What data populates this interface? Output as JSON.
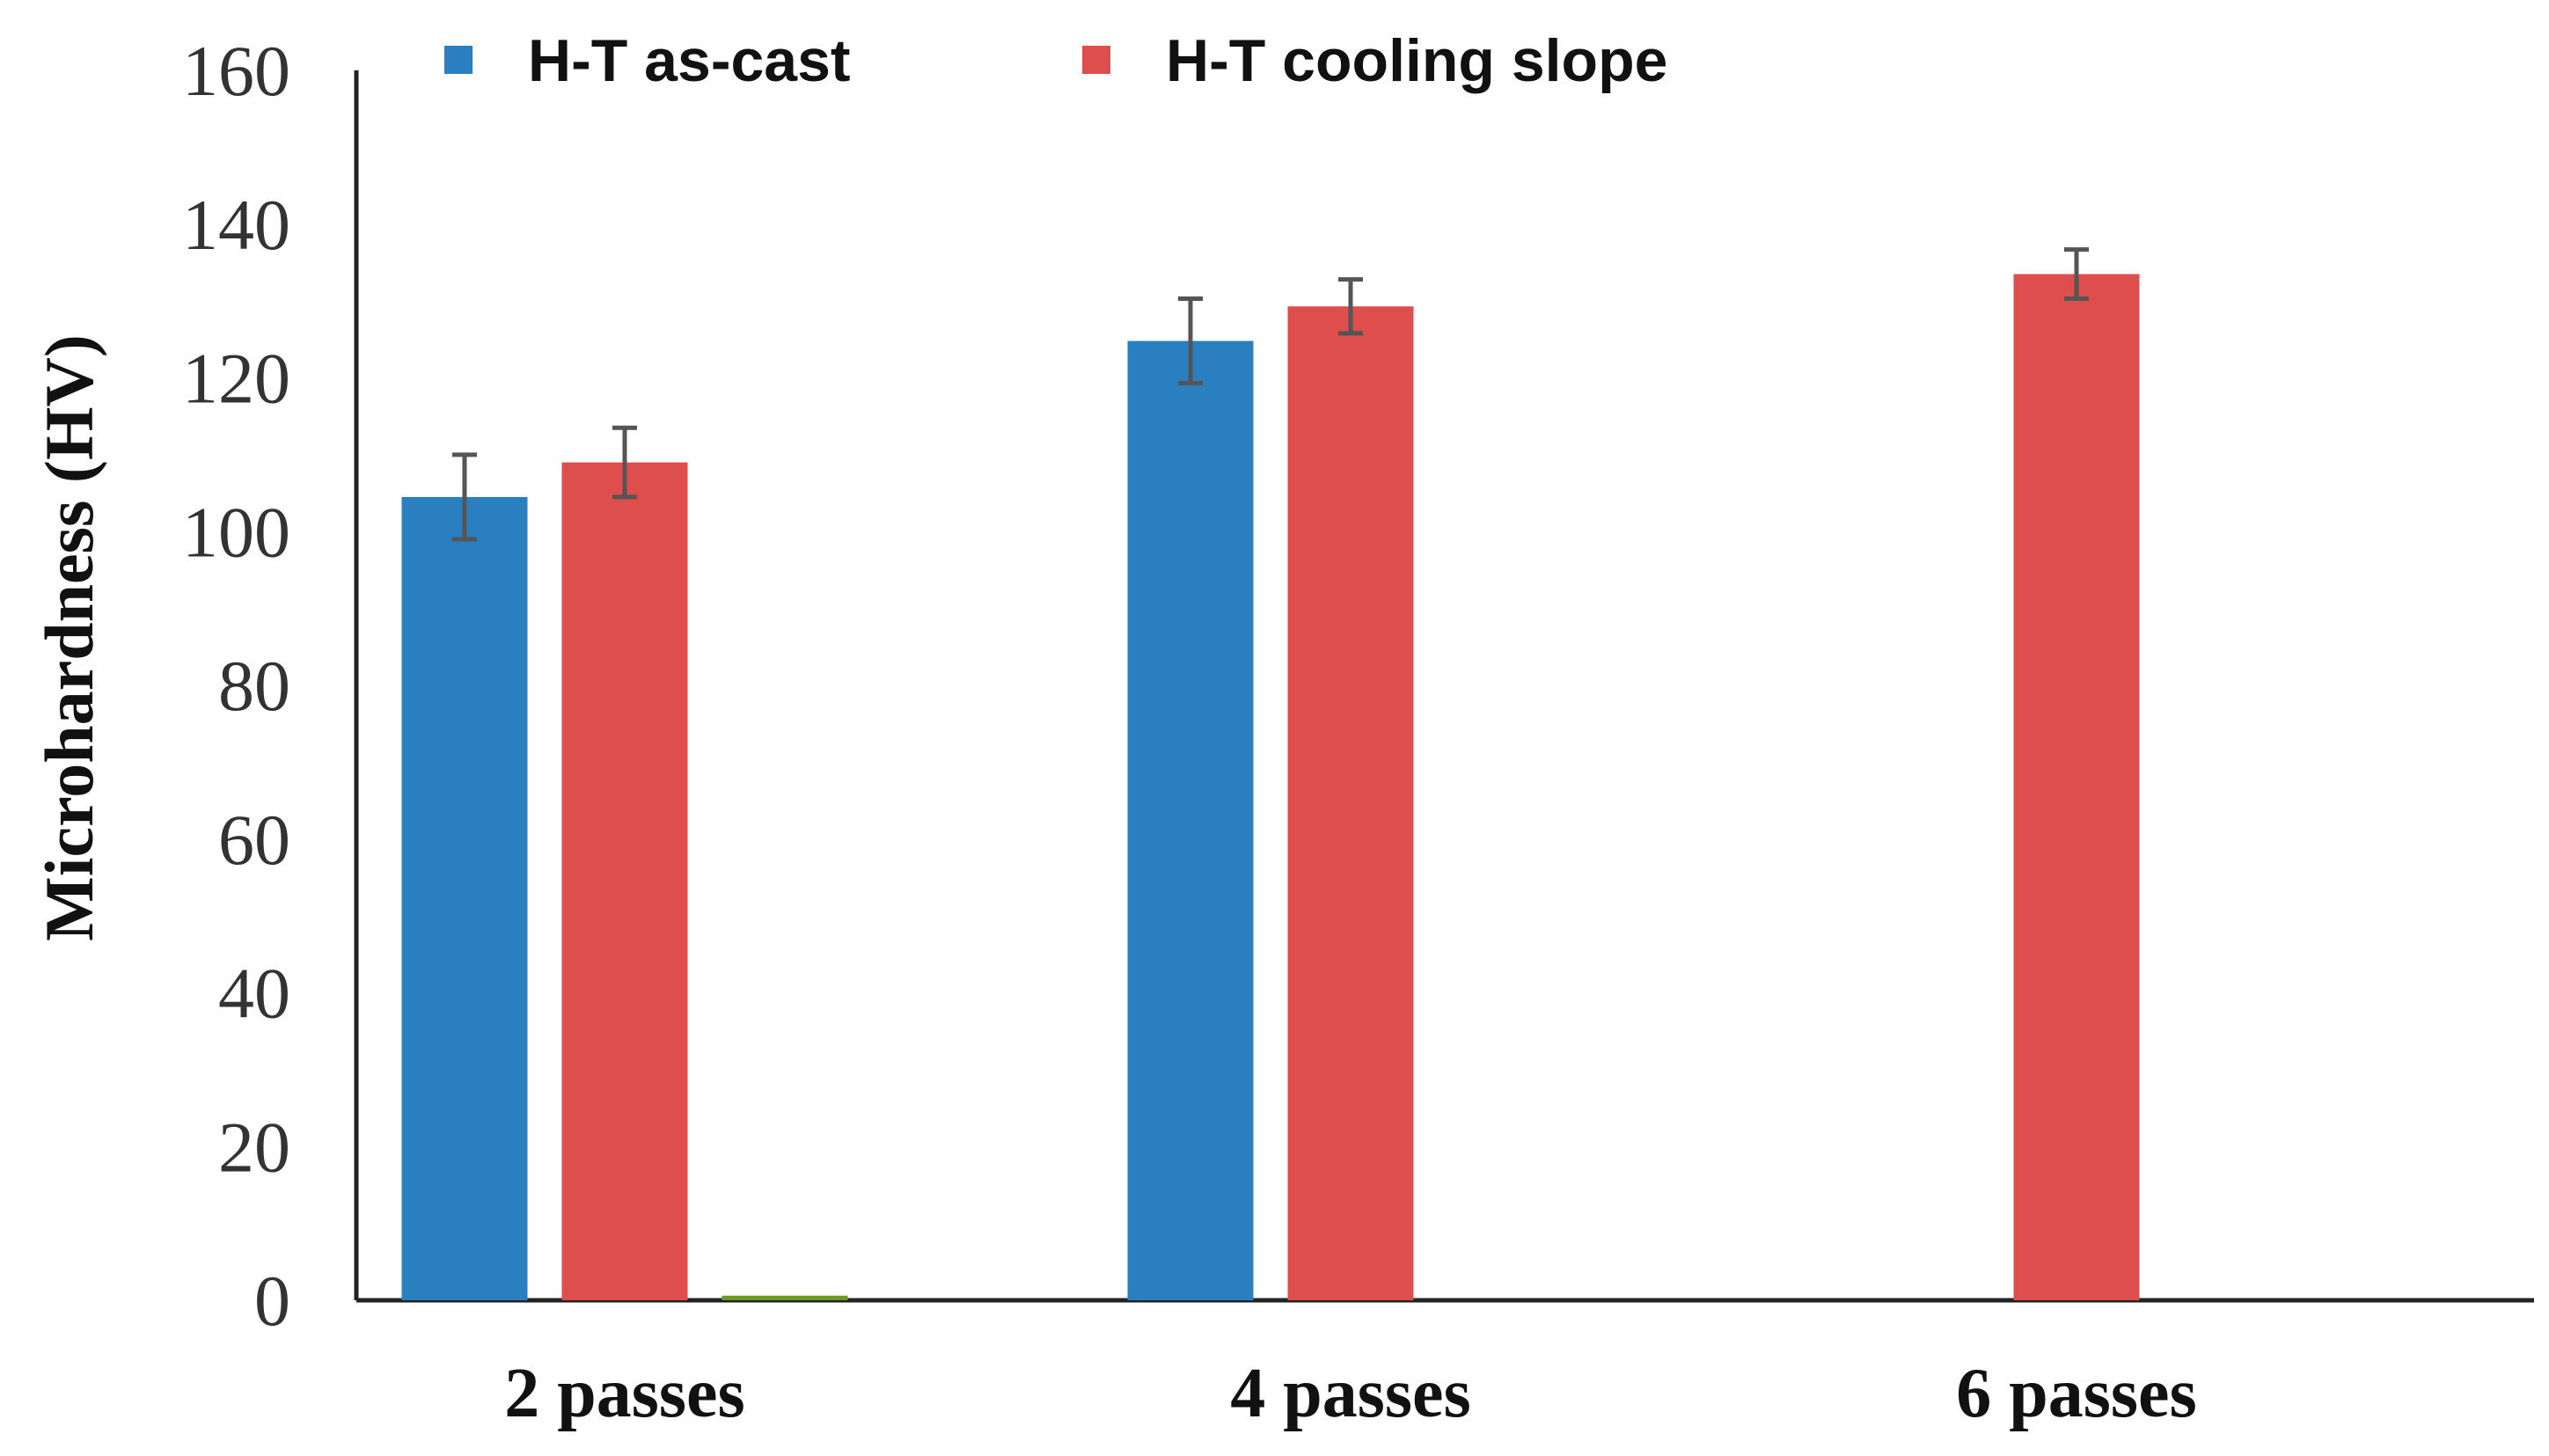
{
  "chart_data": {
    "type": "bar",
    "title": "",
    "xlabel": "",
    "ylabel": "Microhardness (HV)",
    "ylim": [
      0,
      160
    ],
    "yticks": [
      0,
      20,
      40,
      60,
      80,
      100,
      120,
      140,
      160
    ],
    "grid": false,
    "legend_position": "top",
    "categories": [
      "2 passes",
      "4 passes",
      "6 passes"
    ],
    "series": [
      {
        "name": "H-T as-cast",
        "color": "#2a7fc1",
        "values": [
          104.5,
          124.8,
          null
        ],
        "errors": [
          5.5,
          5.5,
          null
        ]
      },
      {
        "name": "H-T cooling slope",
        "color": "#dd4e4c",
        "values": [
          109,
          129.3,
          133.5
        ],
        "errors": [
          4.5,
          3.5,
          3.2
        ]
      },
      {
        "name": "",
        "color": "#6a9a1f",
        "values": [
          0.6,
          null,
          null
        ],
        "errors": [
          null,
          null,
          null
        ],
        "show_in_legend": false
      }
    ]
  }
}
